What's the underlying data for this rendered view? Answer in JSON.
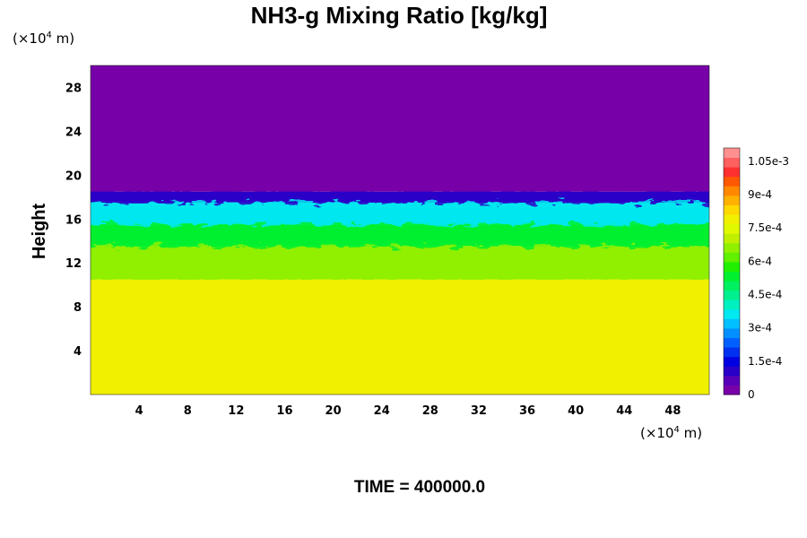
{
  "chart_data": {
    "type": "heatmap",
    "title": "NH3-g Mixing Ratio [kg/kg]",
    "ylabel": "Height",
    "xlabel": "",
    "x_unit_prefix": "(×10",
    "x_unit_exp": "4",
    "x_unit_suffix": " m)",
    "y_unit_prefix": "(×10",
    "y_unit_exp": "4",
    "y_unit_suffix": " m)",
    "xlim": [
      0,
      51
    ],
    "ylim": [
      0,
      30
    ],
    "x_ticks": [
      4,
      8,
      12,
      16,
      20,
      24,
      28,
      32,
      36,
      40,
      44,
      48
    ],
    "y_ticks": [
      4,
      8,
      12,
      16,
      20,
      24,
      28
    ],
    "colorbar": {
      "min": 0,
      "max": 0.00111,
      "tick_values": [
        0,
        0.00015,
        0.0003,
        0.00045,
        0.0006,
        0.00075,
        0.0009,
        0.00105
      ],
      "tick_labels": [
        "0",
        "1.5e-4",
        "3e-4",
        "4.5e-4",
        "6e-4",
        "7.5e-4",
        "9e-4",
        "1.05e-3"
      ],
      "colors": [
        "#7800a8",
        "#5800b8",
        "#2800c8",
        "#0000e0",
        "#0030f0",
        "#0060ff",
        "#0090ff",
        "#00c0ff",
        "#00e8f0",
        "#00f0c0",
        "#00f090",
        "#00f060",
        "#00f030",
        "#20f000",
        "#60f000",
        "#90f000",
        "#c0f000",
        "#e0f800",
        "#f0f000",
        "#ffd800",
        "#ffb000",
        "#ff8800",
        "#ff5800",
        "#ff3030",
        "#ff6060",
        "#ff9090"
      ]
    },
    "layers": [
      {
        "from": 0,
        "to": 10.5,
        "value": 0.00078
      },
      {
        "from": 10.5,
        "to": 13.5,
        "value": 0.00065
      },
      {
        "from": 13.5,
        "to": 15.5,
        "value": 0.00052
      },
      {
        "from": 15.5,
        "to": 17.5,
        "value": 0.00038
      },
      {
        "from": 17.5,
        "to": 18.5,
        "value": 0.00012
      },
      {
        "from": 18.5,
        "to": 30,
        "value": 0
      }
    ],
    "annotation_time": "TIME = 400000.0"
  }
}
